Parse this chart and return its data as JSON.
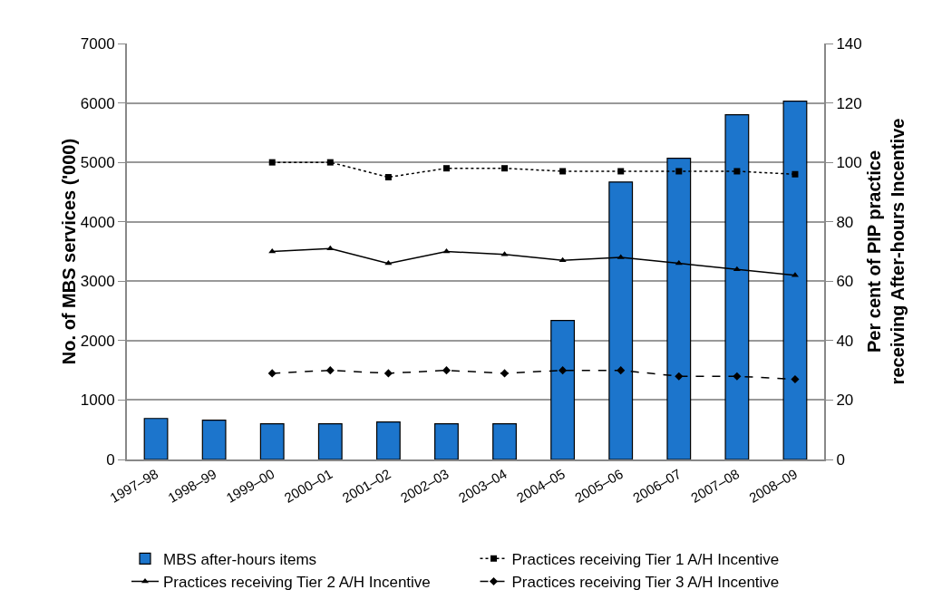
{
  "chart_data": {
    "type": "bar",
    "ylabel": "No. of MBS services ('000)",
    "y2label": "Per cent of PIP practice receiving After-hours Incentive",
    "categories": [
      "1997–98",
      "1998–99",
      "1999–00",
      "2000–01",
      "2001–02",
      "2002–03",
      "2003–04",
      "2004–05",
      "2005–06",
      "2006–07",
      "2007–08",
      "2008–09"
    ],
    "series": [
      {
        "name": "MBS after-hours items",
        "color": "#1c75cc",
        "values": [
          690,
          660,
          600,
          600,
          630,
          600,
          600,
          2340,
          4670,
          5070,
          5800,
          6030
        ]
      },
      {
        "name": "Practices receiving Tier 1 A/H Incentive",
        "type": "line",
        "axis": "y2",
        "color": "#000000",
        "marker": "square",
        "line_style": "dotted",
        "values": [
          null,
          null,
          100,
          100,
          95,
          98,
          98,
          97,
          97,
          97,
          97,
          96
        ]
      },
      {
        "name": "Practices receiving Tier 2 A/H Incentive",
        "type": "line",
        "axis": "y2",
        "color": "#000000",
        "marker": "triangle",
        "line_style": "solid",
        "values": [
          null,
          null,
          70,
          71,
          66,
          70,
          69,
          67,
          68,
          66,
          64,
          62
        ]
      },
      {
        "name": "Practices receiving Tier 3 A/H Incentive",
        "type": "line",
        "axis": "y2",
        "color": "#000000",
        "marker": "diamond",
        "line_style": "dashed",
        "values": [
          null,
          null,
          29,
          30,
          29,
          30,
          29,
          30,
          30,
          28,
          28,
          27
        ]
      }
    ],
    "ylim": [
      0,
      7000
    ],
    "yticks": [
      0,
      1000,
      2000,
      3000,
      4000,
      5000,
      6000,
      7000
    ],
    "y2lim": [
      0,
      140
    ],
    "y2ticks": [
      0,
      20,
      40,
      60,
      80,
      100,
      120,
      140
    ],
    "grid": "y",
    "legend": "bottom"
  }
}
